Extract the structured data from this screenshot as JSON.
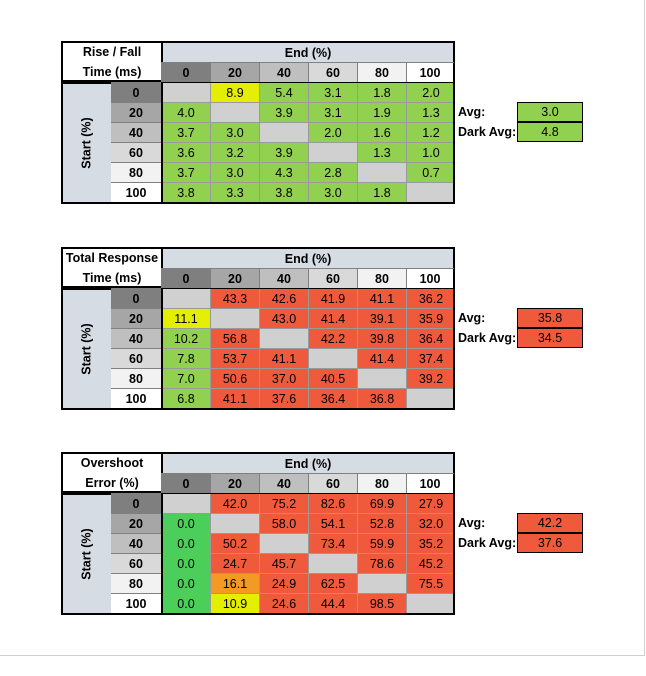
{
  "colors": {
    "header_fill": "#d6dce4",
    "diag_fill": "#d0d0d0",
    "green": "#92d050",
    "green_dark": "#4ccf5a",
    "yellow": "#e4ee00",
    "orange": "#f39a25",
    "red": "#f05a3c"
  },
  "tables": [
    {
      "title_line1": "Rise / Fall",
      "title_line2": "Time (ms)",
      "end_label": "End (%)",
      "start_label": "Start (%)",
      "columns": [
        "0",
        "20",
        "40",
        "60",
        "80",
        "100"
      ],
      "rows": [
        {
          "label": "0",
          "cells": [
            "",
            "8.9",
            "5.4",
            "3.1",
            "1.8",
            "2.0"
          ],
          "fills": [
            "diag",
            "yellow",
            "green",
            "green",
            "green",
            "green"
          ]
        },
        {
          "label": "20",
          "cells": [
            "4.0",
            "",
            "3.9",
            "3.1",
            "1.9",
            "1.3"
          ],
          "fills": [
            "green",
            "diag",
            "green",
            "green",
            "green",
            "green"
          ]
        },
        {
          "label": "40",
          "cells": [
            "3.7",
            "3.0",
            "",
            "2.0",
            "1.6",
            "1.2"
          ],
          "fills": [
            "green",
            "green",
            "diag",
            "green",
            "green",
            "green"
          ]
        },
        {
          "label": "60",
          "cells": [
            "3.6",
            "3.2",
            "3.9",
            "",
            "1.3",
            "1.0"
          ],
          "fills": [
            "green",
            "green",
            "green",
            "diag",
            "green",
            "green"
          ]
        },
        {
          "label": "80",
          "cells": [
            "3.7",
            "3.0",
            "4.3",
            "2.8",
            "",
            "0.7"
          ],
          "fills": [
            "green",
            "green",
            "green",
            "green",
            "diag",
            "green"
          ]
        },
        {
          "label": "100",
          "cells": [
            "3.8",
            "3.3",
            "3.8",
            "3.0",
            "1.8",
            ""
          ],
          "fills": [
            "green",
            "green",
            "green",
            "green",
            "green",
            "diag"
          ]
        }
      ],
      "avg_label": "Avg:",
      "avg_value": "3.0",
      "avg_fill": "green",
      "dark_avg_label": "Dark Avg:",
      "dark_avg_value": "4.8",
      "dark_avg_fill": "green"
    },
    {
      "title_line1": "Total Response",
      "title_line2": "Time (ms)",
      "end_label": "End (%)",
      "start_label": "Start (%)",
      "columns": [
        "0",
        "20",
        "40",
        "60",
        "80",
        "100"
      ],
      "rows": [
        {
          "label": "0",
          "cells": [
            "",
            "43.3",
            "42.6",
            "41.9",
            "41.1",
            "36.2"
          ],
          "fills": [
            "diag",
            "red",
            "red",
            "red",
            "red",
            "red"
          ]
        },
        {
          "label": "20",
          "cells": [
            "11.1",
            "",
            "43.0",
            "41.4",
            "39.1",
            "35.9"
          ],
          "fills": [
            "yellow",
            "diag",
            "red",
            "red",
            "red",
            "red"
          ]
        },
        {
          "label": "40",
          "cells": [
            "10.2",
            "56.8",
            "",
            "42.2",
            "39.8",
            "36.4"
          ],
          "fills": [
            "green",
            "red",
            "diag",
            "red",
            "red",
            "red"
          ]
        },
        {
          "label": "60",
          "cells": [
            "7.8",
            "53.7",
            "41.1",
            "",
            "41.4",
            "37.4"
          ],
          "fills": [
            "green",
            "red",
            "red",
            "diag",
            "red",
            "red"
          ]
        },
        {
          "label": "80",
          "cells": [
            "7.0",
            "50.6",
            "37.0",
            "40.5",
            "",
            "39.2"
          ],
          "fills": [
            "green",
            "red",
            "red",
            "red",
            "diag",
            "red"
          ]
        },
        {
          "label": "100",
          "cells": [
            "6.8",
            "41.1",
            "37.6",
            "36.4",
            "36.8",
            ""
          ],
          "fills": [
            "green",
            "red",
            "red",
            "red",
            "red",
            "diag"
          ]
        }
      ],
      "avg_label": "Avg:",
      "avg_value": "35.8",
      "avg_fill": "red",
      "dark_avg_label": "Dark Avg:",
      "dark_avg_value": "34.5",
      "dark_avg_fill": "red"
    },
    {
      "title_line1": "Overshoot",
      "title_line2": "Error (%)",
      "end_label": "End (%)",
      "start_label": "Start (%)",
      "columns": [
        "0",
        "20",
        "40",
        "60",
        "80",
        "100"
      ],
      "rows": [
        {
          "label": "0",
          "cells": [
            "",
            "42.0",
            "75.2",
            "82.6",
            "69.9",
            "27.9"
          ],
          "fills": [
            "diag",
            "red",
            "red",
            "red",
            "red",
            "red"
          ]
        },
        {
          "label": "20",
          "cells": [
            "0.0",
            "",
            "58.0",
            "54.1",
            "52.8",
            "32.0"
          ],
          "fills": [
            "green_dark",
            "diag",
            "red",
            "red",
            "red",
            "red"
          ]
        },
        {
          "label": "40",
          "cells": [
            "0.0",
            "50.2",
            "",
            "73.4",
            "59.9",
            "35.2"
          ],
          "fills": [
            "green_dark",
            "red",
            "diag",
            "red",
            "red",
            "red"
          ]
        },
        {
          "label": "60",
          "cells": [
            "0.0",
            "24.7",
            "45.7",
            "",
            "78.6",
            "45.2"
          ],
          "fills": [
            "green_dark",
            "red",
            "red",
            "diag",
            "red",
            "red"
          ]
        },
        {
          "label": "80",
          "cells": [
            "0.0",
            "16.1",
            "24.9",
            "62.5",
            "",
            "75.5"
          ],
          "fills": [
            "green_dark",
            "orange",
            "red",
            "red",
            "diag",
            "red"
          ]
        },
        {
          "label": "100",
          "cells": [
            "0.0",
            "10.9",
            "24.6",
            "44.4",
            "98.5",
            ""
          ],
          "fills": [
            "green_dark",
            "yellow",
            "red",
            "red",
            "red",
            "diag"
          ]
        }
      ],
      "avg_label": "Avg:",
      "avg_value": "42.2",
      "avg_fill": "red",
      "dark_avg_label": "Dark Avg:",
      "dark_avg_value": "37.6",
      "dark_avg_fill": "red"
    }
  ]
}
